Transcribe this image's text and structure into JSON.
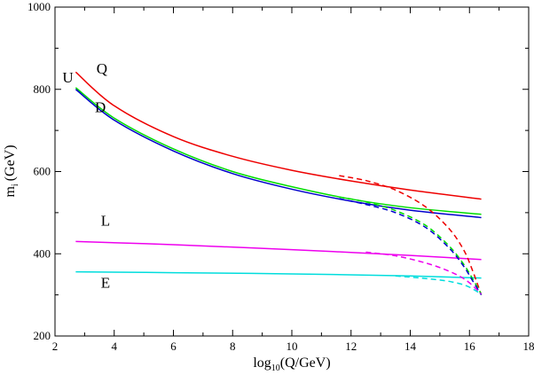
{
  "chart_data": {
    "type": "line",
    "title": "",
    "xlabel": {
      "main": "log",
      "sub": "10",
      "rest": "(Q/GeV)"
    },
    "ylabel": {
      "main": "m",
      "sub": "i",
      "rest": "(GeV)"
    },
    "xlim": [
      2,
      18
    ],
    "ylim": [
      200,
      1000
    ],
    "xticks": [
      2,
      4,
      6,
      8,
      10,
      12,
      14,
      16,
      18
    ],
    "yticks": [
      200,
      400,
      600,
      800,
      1000
    ],
    "xtick_labels": [
      "2",
      "4",
      "6",
      "8",
      "10",
      "12",
      "14",
      "16",
      "18"
    ],
    "ytick_labels": [
      "200",
      "400",
      "600",
      "800",
      "1000"
    ],
    "series": [
      {
        "name": "Q",
        "color": "#ee0000",
        "style": "solid",
        "x": [
          2.7,
          4,
          6,
          8,
          10,
          12,
          14,
          16.4
        ],
        "y": [
          842,
          760,
          685,
          637,
          603,
          577,
          555,
          533
        ]
      },
      {
        "name": "U",
        "color": "#00dd00",
        "style": "solid",
        "x": [
          2.7,
          4,
          6,
          8,
          10,
          12,
          14,
          16.4
        ],
        "y": [
          804,
          730,
          655,
          600,
          563,
          533,
          512,
          496
        ]
      },
      {
        "name": "D",
        "color": "#0000cc",
        "style": "solid",
        "x": [
          2.7,
          4,
          6,
          8,
          10,
          12,
          14,
          16.4
        ],
        "y": [
          800,
          725,
          650,
          595,
          557,
          528,
          506,
          488
        ]
      },
      {
        "name": "L",
        "color": "#ee00ee",
        "style": "solid",
        "x": [
          2.7,
          6,
          10,
          14,
          16.4
        ],
        "y": [
          430,
          422,
          410,
          396,
          386
        ]
      },
      {
        "name": "E",
        "color": "#00dddd",
        "style": "solid",
        "x": [
          2.7,
          6,
          10,
          14,
          16.4
        ],
        "y": [
          356,
          354,
          351,
          346,
          341
        ]
      },
      {
        "name": "Q-dashed",
        "color": "#ee0000",
        "style": "dashed",
        "x": [
          11.6,
          12.5,
          13.5,
          14.5,
          15.3,
          15.8,
          16.1,
          16.4
        ],
        "y": [
          590,
          578,
          555,
          515,
          462,
          410,
          360,
          300
        ]
      },
      {
        "name": "U-dashed",
        "color": "#00dd00",
        "style": "dashed",
        "x": [
          11.6,
          12.5,
          13.5,
          14.5,
          15.3,
          15.8,
          16.1,
          16.4
        ],
        "y": [
          538,
          526,
          505,
          470,
          420,
          375,
          340,
          302
        ]
      },
      {
        "name": "D-dashed",
        "color": "#0000cc",
        "style": "dashed",
        "x": [
          11.6,
          12.5,
          13.5,
          14.5,
          15.3,
          15.8,
          16.1,
          16.4
        ],
        "y": [
          534,
          520,
          500,
          465,
          415,
          370,
          335,
          300
        ]
      },
      {
        "name": "L-dashed",
        "color": "#ee00ee",
        "style": "dashed",
        "x": [
          12.5,
          13.5,
          14.5,
          15.3,
          15.9,
          16.4
        ],
        "y": [
          404,
          395,
          378,
          358,
          335,
          302
        ]
      },
      {
        "name": "E-dashed",
        "color": "#00dddd",
        "style": "dashed",
        "x": [
          13.5,
          14.5,
          15.3,
          15.9,
          16.4
        ],
        "y": [
          346,
          340,
          333,
          322,
          302
        ]
      }
    ],
    "annotations": [
      {
        "text": "Q",
        "x": 3.4,
        "y": 838
      },
      {
        "text": "U",
        "x": 2.25,
        "y": 817
      },
      {
        "text": "D",
        "x": 3.35,
        "y": 745
      },
      {
        "text": "L",
        "x": 3.55,
        "y": 468
      },
      {
        "text": "E",
        "x": 3.55,
        "y": 318
      }
    ]
  }
}
